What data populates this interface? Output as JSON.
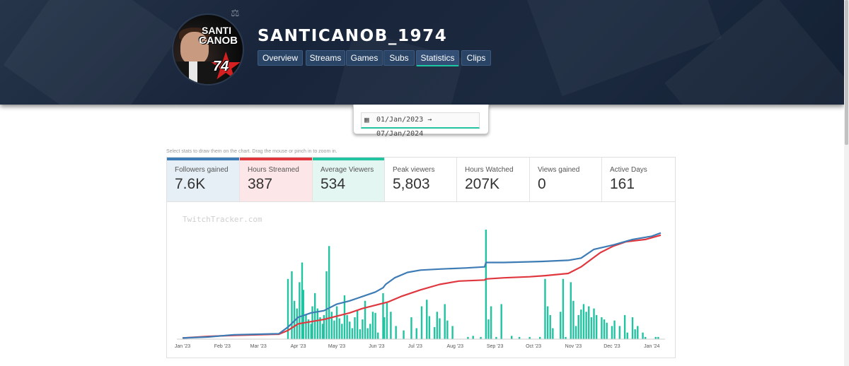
{
  "header": {
    "channel_name": "SANTICANOB_1974",
    "avatar_text": {
      "line1": "SANTI",
      "line2": "CANOB",
      "number": "74"
    },
    "tabs": [
      {
        "label": "Overview"
      },
      {
        "label": "Streams"
      },
      {
        "label": "Games"
      },
      {
        "label": "Subs"
      },
      {
        "label": "Statistics",
        "active": true
      },
      {
        "label": "Clips"
      }
    ]
  },
  "date_range": {
    "from": "01/Jan/2023",
    "arrow": "→",
    "to": "07/Jan/2024",
    "icon": "calendar-icon"
  },
  "hint": "Select stats to draw them on the chart. Drag the mouse or pinch in to zoom in.",
  "stats": [
    {
      "label": "Followers gained",
      "value": "7.6K",
      "selected": true,
      "color": "#3e7cb5",
      "bg": "#e6eff6"
    },
    {
      "label": "Hours Streamed",
      "value": "387",
      "selected": true,
      "color": "#e0373f",
      "bg": "#fde6e7"
    },
    {
      "label": "Average Viewers",
      "value": "534",
      "selected": true,
      "color": "#21c3a1",
      "bg": "#e3f6f1"
    },
    {
      "label": "Peak viewers",
      "value": "5,803",
      "selected": false
    },
    {
      "label": "Hours Watched",
      "value": "207K",
      "selected": false
    },
    {
      "label": "Views gained",
      "value": "0",
      "selected": false
    },
    {
      "label": "Active Days",
      "value": "161",
      "selected": false
    }
  ],
  "chart_data": {
    "type": "bar+line",
    "watermark": "TwitchTracker.com",
    "x_ticks": [
      "Jan '23",
      "Feb '23",
      "Mar '23",
      "Apr '23",
      "May '23",
      "Jun '23",
      "Jul '23",
      "Aug '23",
      "Sep '23",
      "Oct '23",
      "Nov '23",
      "Dec '23",
      "Jan '24"
    ],
    "x_range_days": [
      0,
      372
    ],
    "series": [
      {
        "name": "Average Viewers",
        "kind": "bar",
        "color": "#21c3a1",
        "unit": "relative (0-1 of peak)",
        "points": [
          [
            82,
            0.55
          ],
          [
            85,
            0.62
          ],
          [
            87,
            0.35
          ],
          [
            89,
            0.28
          ],
          [
            91,
            0.52
          ],
          [
            93,
            0.7
          ],
          [
            94,
            0.45
          ],
          [
            96,
            0.22
          ],
          [
            98,
            0.18
          ],
          [
            100,
            0.14
          ],
          [
            101,
            0.3
          ],
          [
            103,
            0.42
          ],
          [
            105,
            0.28
          ],
          [
            107,
            0.2
          ],
          [
            109,
            0.14
          ],
          [
            110,
            0.22
          ],
          [
            112,
            0.62
          ],
          [
            114,
            0.85
          ],
          [
            116,
            0.25
          ],
          [
            118,
            0.17
          ],
          [
            120,
            0.3
          ],
          [
            122,
            0.19
          ],
          [
            124,
            0.14
          ],
          [
            126,
            0.4
          ],
          [
            128,
            0.22
          ],
          [
            130,
            0.16
          ],
          [
            132,
            0.1
          ],
          [
            134,
            0.2
          ],
          [
            136,
            0.26
          ],
          [
            138,
            0.09
          ],
          [
            140,
            0.18
          ],
          [
            142,
            0.35
          ],
          [
            144,
            0.1
          ],
          [
            146,
            0.14
          ],
          [
            148,
            0.25
          ],
          [
            150,
            0.24
          ],
          [
            152,
            0.06
          ],
          [
            156,
            0.42
          ],
          [
            157,
            0.2
          ],
          [
            159,
            0.33
          ],
          [
            162,
            0.25
          ],
          [
            166,
            0.12
          ],
          [
            172,
            0.08
          ],
          [
            178,
            0.2
          ],
          [
            182,
            0.1
          ],
          [
            186,
            0.3
          ],
          [
            190,
            0.36
          ],
          [
            192,
            0.21
          ],
          [
            196,
            0.11
          ],
          [
            198,
            0.25
          ],
          [
            200,
            0.19
          ],
          [
            204,
            0.32
          ],
          [
            206,
            0.17
          ],
          [
            210,
            0.12
          ],
          [
            222,
            0.02
          ],
          [
            226,
            0.03
          ],
          [
            232,
            0.02
          ],
          [
            236,
            1.0
          ],
          [
            238,
            0.18
          ],
          [
            240,
            0.3
          ],
          [
            244,
            0.02
          ],
          [
            248,
            0.32
          ],
          [
            256,
            0.03
          ],
          [
            262,
            0.02
          ],
          [
            270,
            0.02
          ],
          [
            278,
            0.02
          ],
          [
            282,
            0.55
          ],
          [
            284,
            0.3
          ],
          [
            286,
            0.22
          ],
          [
            288,
            0.1
          ],
          [
            294,
            0.25
          ],
          [
            296,
            0.55
          ],
          [
            298,
            0.02
          ],
          [
            302,
            0.52
          ],
          [
            304,
            0.35
          ],
          [
            306,
            0.12
          ],
          [
            308,
            0.22
          ],
          [
            310,
            0.27
          ],
          [
            312,
            0.32
          ],
          [
            314,
            0.25
          ],
          [
            316,
            0.3
          ],
          [
            318,
            0.2
          ],
          [
            320,
            0.28
          ],
          [
            322,
            0.22
          ],
          [
            326,
            0.2
          ],
          [
            328,
            0.18
          ],
          [
            330,
            0.15
          ],
          [
            334,
            0.12
          ],
          [
            336,
            0.17
          ],
          [
            340,
            0.12
          ],
          [
            344,
            0.22
          ],
          [
            346,
            0.06
          ],
          [
            350,
            0.2
          ],
          [
            352,
            0.09
          ],
          [
            354,
            0.12
          ],
          [
            358,
            0.06
          ],
          [
            360,
            0.02
          ],
          [
            368,
            0.02
          ],
          [
            370,
            0.02
          ]
        ]
      },
      {
        "name": "Followers gained",
        "kind": "line",
        "color": "#3e7cb5",
        "unit": "relative cumulative (0-1)",
        "points": [
          [
            0,
            0.01
          ],
          [
            20,
            0.02
          ],
          [
            40,
            0.04
          ],
          [
            75,
            0.05
          ],
          [
            82,
            0.11
          ],
          [
            90,
            0.2
          ],
          [
            100,
            0.24
          ],
          [
            110,
            0.26
          ],
          [
            120,
            0.32
          ],
          [
            130,
            0.35
          ],
          [
            140,
            0.39
          ],
          [
            150,
            0.43
          ],
          [
            156,
            0.47
          ],
          [
            158,
            0.5
          ],
          [
            165,
            0.56
          ],
          [
            175,
            0.61
          ],
          [
            185,
            0.63
          ],
          [
            200,
            0.64
          ],
          [
            220,
            0.65
          ],
          [
            235,
            0.66
          ],
          [
            236,
            0.7
          ],
          [
            250,
            0.7
          ],
          [
            280,
            0.71
          ],
          [
            300,
            0.72
          ],
          [
            310,
            0.74
          ],
          [
            320,
            0.82
          ],
          [
            335,
            0.86
          ],
          [
            350,
            0.91
          ],
          [
            365,
            0.94
          ],
          [
            372,
            0.97
          ]
        ]
      },
      {
        "name": "Hours Streamed",
        "kind": "line",
        "color": "#e0373f",
        "unit": "relative cumulative (0-1)",
        "points": [
          [
            0,
            0.01
          ],
          [
            20,
            0.025
          ],
          [
            40,
            0.035
          ],
          [
            75,
            0.045
          ],
          [
            82,
            0.08
          ],
          [
            90,
            0.14
          ],
          [
            100,
            0.16
          ],
          [
            110,
            0.18
          ],
          [
            120,
            0.21
          ],
          [
            130,
            0.24
          ],
          [
            140,
            0.28
          ],
          [
            150,
            0.31
          ],
          [
            160,
            0.34
          ],
          [
            170,
            0.39
          ],
          [
            185,
            0.45
          ],
          [
            200,
            0.5
          ],
          [
            215,
            0.53
          ],
          [
            235,
            0.54
          ],
          [
            236,
            0.55
          ],
          [
            250,
            0.56
          ],
          [
            270,
            0.57
          ],
          [
            282,
            0.58
          ],
          [
            300,
            0.6
          ],
          [
            310,
            0.66
          ],
          [
            318,
            0.73
          ],
          [
            325,
            0.79
          ],
          [
            335,
            0.85
          ],
          [
            345,
            0.89
          ],
          [
            360,
            0.91
          ],
          [
            372,
            0.95
          ]
        ]
      }
    ]
  }
}
